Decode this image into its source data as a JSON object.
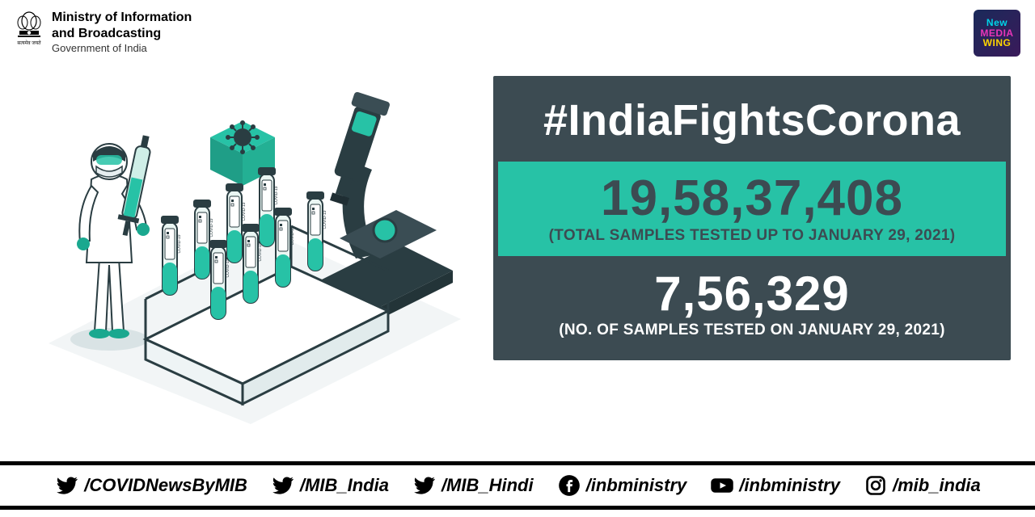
{
  "header": {
    "ministry_line1": "Ministry of Information",
    "ministry_line2": "and Broadcasting",
    "ministry_line3": "Government of India",
    "nmw_line1": "New",
    "nmw_line2": "MEDIA",
    "nmw_line3": "WING"
  },
  "panel": {
    "hashtag": "#IndiaFightsCorona",
    "total": {
      "value": "19,58,37,408",
      "caption": "(TOTAL SAMPLES TESTED UP TO JANUARY 29, 2021)"
    },
    "daily": {
      "value": "7,56,329",
      "caption": "(NO. OF SAMPLES TESTED ON JANUARY 29, 2021)"
    },
    "colors": {
      "dark": "#3c4b52",
      "teal": "#27c2a6",
      "white": "#ffffff"
    }
  },
  "footer": {
    "items": [
      {
        "icon": "twitter",
        "handle": "/COVIDNewsByMIB"
      },
      {
        "icon": "twitter",
        "handle": "/MIB_India"
      },
      {
        "icon": "twitter",
        "handle": "/MIB_Hindi"
      },
      {
        "icon": "facebook",
        "handle": "/inbministry"
      },
      {
        "icon": "youtube",
        "handle": "/inbministry"
      },
      {
        "icon": "instagram",
        "handle": "/mib_india"
      }
    ]
  }
}
